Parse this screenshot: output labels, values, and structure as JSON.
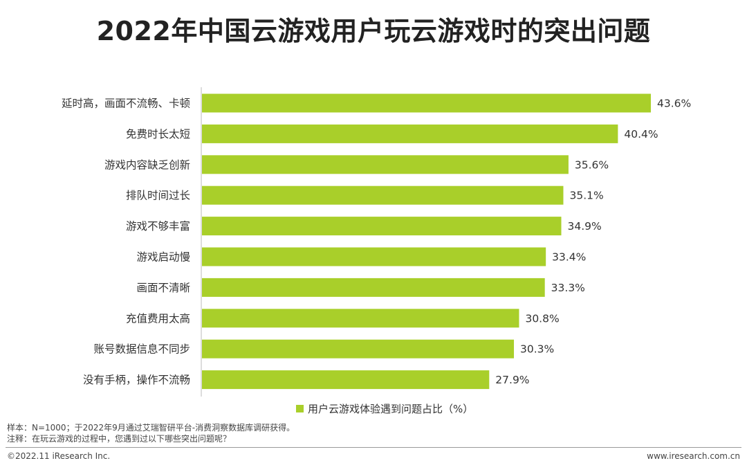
{
  "title": "2022年中国云游戏用户玩云游戏时的突出问题",
  "chart_data": {
    "type": "bar",
    "orientation": "horizontal",
    "categories": [
      "延时高，画面不流畅、卡顿",
      "免费时长太短",
      "游戏内容缺乏创新",
      "排队时间过长",
      "游戏不够丰富",
      "游戏启动慢",
      "画面不清晰",
      "充值费用太高",
      "账号数据信息不同步",
      "没有手柄，操作不流畅"
    ],
    "values": [
      43.6,
      40.4,
      35.6,
      35.1,
      34.9,
      33.4,
      33.3,
      30.8,
      30.3,
      27.9
    ],
    "value_labels": [
      "43.6%",
      "40.4%",
      "35.6%",
      "35.1%",
      "34.9%",
      "33.4%",
      "33.3%",
      "30.8%",
      "30.3%",
      "27.9%"
    ],
    "series": [
      {
        "name": "用户云游戏体验遇到问题占比（%）"
      }
    ],
    "bar_color": "#a9cf2a",
    "xlim": [
      0,
      50
    ],
    "grid": false,
    "legend_position": "bottom"
  },
  "legend": {
    "label": "用户云游戏体验遇到问题占比（%）"
  },
  "notes": {
    "sample": "样本：N=1000；于2022年9月通过艾瑞智研平台-消费洞察数据库调研获得。",
    "remark": "注释：在玩云游戏的过程中，您遇到过以下哪些突出问题呢？"
  },
  "footer": {
    "copyright": "©2022.11 iResearch Inc.",
    "url": "www.iresearch.com.cn"
  }
}
